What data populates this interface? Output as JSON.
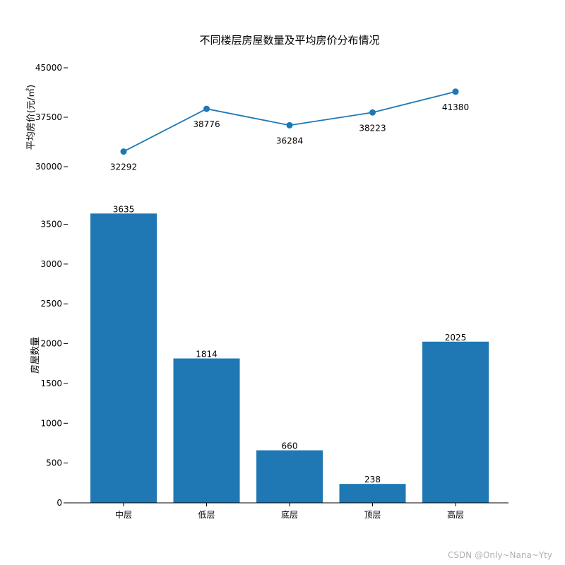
{
  "title": "不同楼层房屋数量及平均房价分布情况",
  "watermark": "CSDN @Only~Nana~Yty",
  "chart_data": [
    {
      "type": "line",
      "categories": [
        "中层",
        "低层",
        "底层",
        "顶层",
        "高层"
      ],
      "values": [
        32292,
        38776,
        36284,
        38223,
        41380
      ],
      "ylabel": "平均房价(元/㎡)",
      "ylim": [
        30000,
        45000
      ],
      "yticks": [
        30000,
        37500,
        45000
      ],
      "xticks_visible": false,
      "color": "#1f77b4",
      "data_labels": [
        "32292",
        "38776",
        "36284",
        "38223",
        "41380"
      ]
    },
    {
      "type": "bar",
      "categories": [
        "中层",
        "低层",
        "底层",
        "顶层",
        "高层"
      ],
      "values": [
        3635,
        1814,
        660,
        238,
        2025
      ],
      "ylabel": "房屋数量",
      "ylim": [
        0,
        3700
      ],
      "yticks": [
        0,
        500,
        1000,
        1500,
        2000,
        2500,
        3000,
        3500
      ],
      "color": "#1f77b4",
      "data_labels": [
        "3635",
        "1814",
        "660",
        "238",
        "2025"
      ]
    }
  ]
}
